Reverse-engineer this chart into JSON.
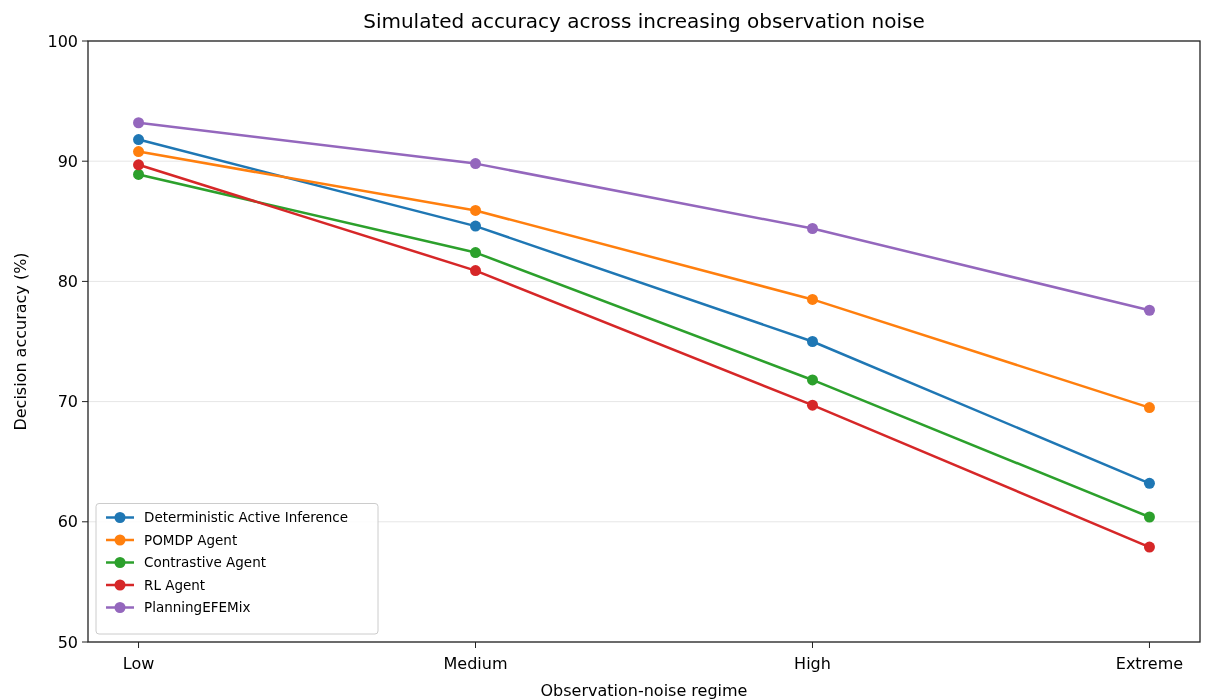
{
  "chart_data": {
    "type": "line",
    "title": "Simulated accuracy across increasing observation noise",
    "xlabel": "Observation-noise regime",
    "ylabel": "Decision accuracy (%)",
    "categories": [
      "Low",
      "Medium",
      "High",
      "Extreme"
    ],
    "series": [
      {
        "name": "Deterministic Active Inference",
        "color": "#1f77b4",
        "values": [
          91.8,
          84.6,
          75.0,
          63.2
        ]
      },
      {
        "name": "POMDP Agent",
        "color": "#ff7f0e",
        "values": [
          90.8,
          85.9,
          78.5,
          69.5
        ]
      },
      {
        "name": "Contrastive Agent",
        "color": "#2ca02c",
        "values": [
          88.9,
          82.4,
          71.8,
          60.4
        ]
      },
      {
        "name": "RL Agent",
        "color": "#d62728",
        "values": [
          89.7,
          80.9,
          69.7,
          57.9
        ]
      },
      {
        "name": "PlanningEFEMix",
        "color": "#9467bd",
        "values": [
          93.2,
          89.8,
          84.4,
          77.6
        ]
      }
    ],
    "ylim": [
      50,
      100
    ],
    "yticks": [
      50,
      60,
      70,
      80,
      90,
      100
    ],
    "grid": "y",
    "legend": "bottom left",
    "marker": "circle",
    "line_style": "solid"
  }
}
